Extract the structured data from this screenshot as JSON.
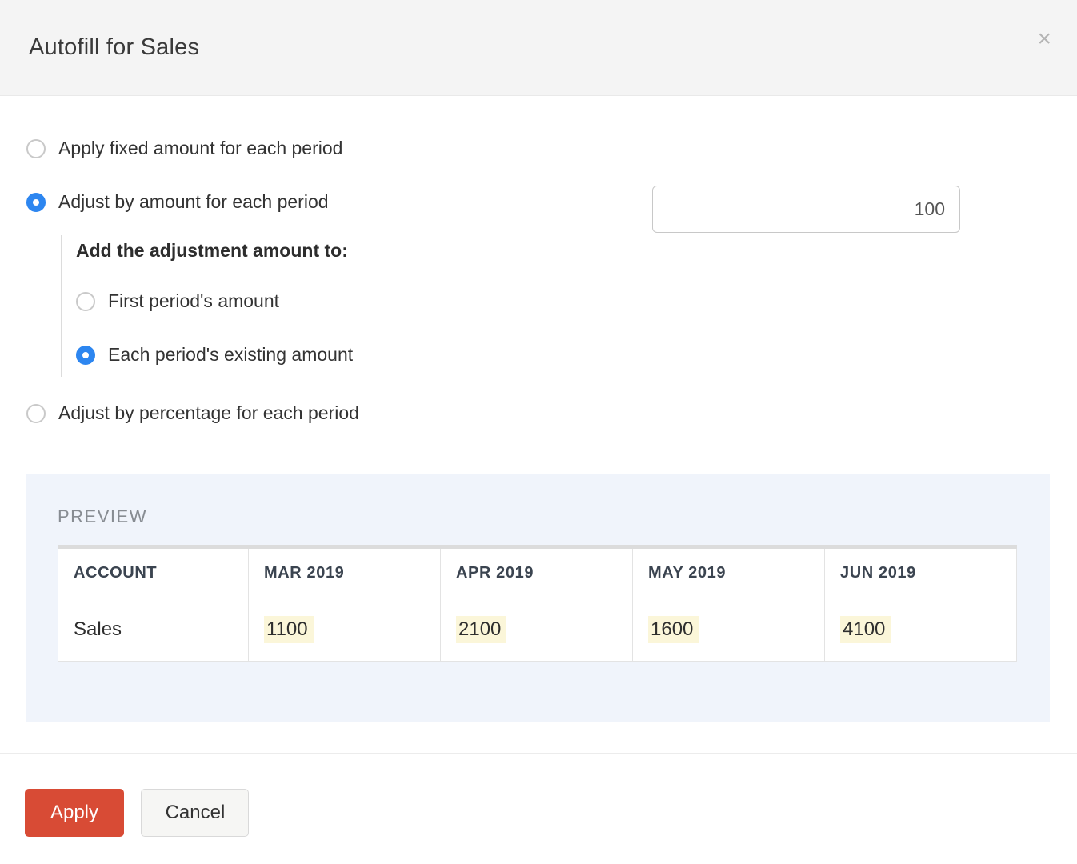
{
  "dialog": {
    "title": "Autofill for Sales",
    "close_icon": "×"
  },
  "options": {
    "fixed": {
      "label": "Apply fixed amount for each period",
      "selected": false
    },
    "adjust_amount": {
      "label": "Adjust by amount for each period",
      "selected": true
    },
    "amount_value": "100",
    "sub_section": {
      "title": "Add the adjustment amount to:",
      "first_period": {
        "label": "First period's amount",
        "selected": false
      },
      "each_period": {
        "label": "Each period's existing amount",
        "selected": true
      }
    },
    "adjust_percentage": {
      "label": "Adjust by percentage for each period",
      "selected": false
    }
  },
  "preview": {
    "label": "PREVIEW",
    "table": {
      "columns": [
        "ACCOUNT",
        "MAR 2019",
        "APR 2019",
        "MAY 2019",
        "JUN 2019"
      ],
      "rows": [
        {
          "account": "Sales",
          "values": [
            "1100",
            "2100",
            "1600",
            "4100"
          ]
        }
      ]
    }
  },
  "footer": {
    "apply_label": "Apply",
    "cancel_label": "Cancel"
  },
  "colors": {
    "accent_blue": "#2d86f0",
    "apply_red": "#d84b35",
    "highlight_yellow": "#fbf6d9",
    "preview_bg": "#f0f4fb",
    "header_bg": "#f4f4f4"
  }
}
